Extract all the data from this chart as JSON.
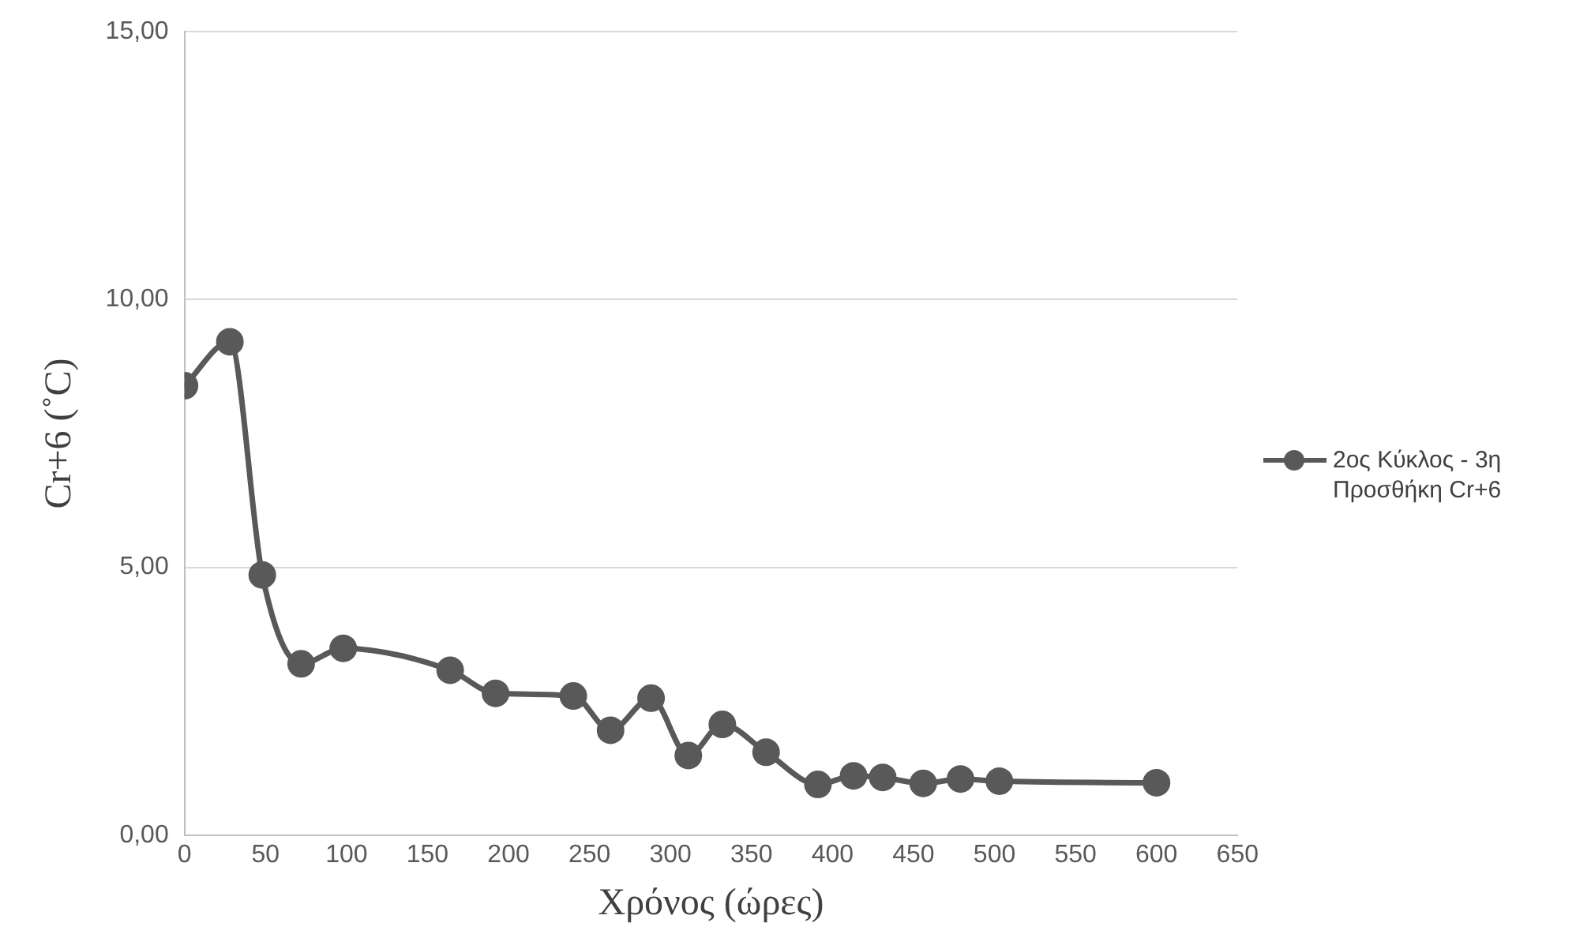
{
  "chart_data": {
    "type": "line",
    "xlabel": "Χρόνος (ώρες)",
    "ylabel": "Cr+6 (˚C)",
    "x": [
      0,
      28,
      48,
      72,
      98,
      164,
      192,
      240,
      263,
      288,
      311,
      332,
      359,
      391,
      413,
      431,
      456,
      479,
      503,
      600
    ],
    "series": [
      {
        "name": "2ος Κύκλος - 3η Προσθήκη Cr+6",
        "color": "#595959",
        "values": [
          8.39,
          9.21,
          4.86,
          3.2,
          3.49,
          3.08,
          2.65,
          2.6,
          1.96,
          2.56,
          1.49,
          2.07,
          1.55,
          0.95,
          1.11,
          1.08,
          0.97,
          1.05,
          1.01,
          0.98
        ]
      }
    ],
    "xlim": [
      0,
      650
    ],
    "xticks": [
      0,
      50,
      100,
      150,
      200,
      250,
      300,
      350,
      400,
      450,
      500,
      550,
      600,
      650
    ],
    "ylim": [
      0,
      15
    ],
    "yticks": [
      {
        "value": 0,
        "label": "0,00"
      },
      {
        "value": 5,
        "label": "5,00"
      },
      {
        "value": 10,
        "label": "10,00"
      },
      {
        "value": 15,
        "label": "15,00"
      }
    ],
    "grid": "y",
    "legend": "right",
    "marker": "circle",
    "line_style": "solid"
  }
}
